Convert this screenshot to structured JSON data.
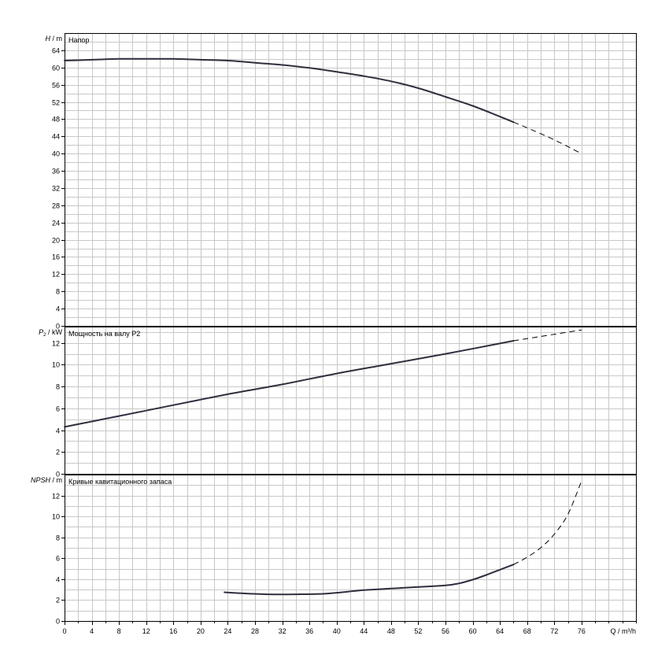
{
  "chart_data": [
    {
      "type": "line",
      "key": "head",
      "title": "Напор",
      "ylabel_italic": "H",
      "ylabel_unit": "/ m",
      "ylim": [
        0,
        68
      ],
      "yticks": [
        0,
        4,
        8,
        12,
        16,
        20,
        24,
        28,
        32,
        36,
        40,
        44,
        48,
        52,
        56,
        60,
        64
      ],
      "grid": true,
      "series": [
        {
          "style": "solid",
          "x": [
            0,
            4,
            8,
            12,
            16,
            20,
            24,
            28,
            32,
            36,
            40,
            44,
            48,
            52,
            56,
            60,
            64,
            66
          ],
          "y": [
            61.6,
            61.8,
            62,
            62,
            62,
            61.8,
            61.6,
            61.1,
            60.6,
            59.9,
            59,
            58,
            56.8,
            55.2,
            53.2,
            51.1,
            48.6,
            47.3
          ]
        },
        {
          "style": "dashed",
          "x": [
            66,
            68,
            72,
            76
          ],
          "y": [
            47.3,
            46,
            43.2,
            40
          ]
        }
      ]
    },
    {
      "type": "line",
      "key": "power",
      "title": "Мощность на валу P2",
      "ylabel_italic": "P",
      "ylabel_sub": "2",
      "ylabel_unit": "/ kW",
      "ylim": [
        0,
        13.5
      ],
      "yticks": [
        0,
        2,
        4,
        6,
        8,
        10,
        12
      ],
      "grid": true,
      "series": [
        {
          "style": "solid",
          "x": [
            0,
            8,
            16,
            24,
            32,
            40,
            48,
            56,
            66
          ],
          "y": [
            4.3,
            5.3,
            6.3,
            7.3,
            8.2,
            9.2,
            10.1,
            11.0,
            12.2
          ]
        },
        {
          "style": "dashed",
          "x": [
            66,
            70,
            76
          ],
          "y": [
            12.2,
            12.6,
            13.2
          ]
        }
      ]
    },
    {
      "type": "line",
      "key": "npsh",
      "title": "Кривые кавитационного запаса",
      "ylabel_italic": "NPSH",
      "ylabel_unit": "/ m",
      "ylim": [
        0,
        14
      ],
      "yticks": [
        0,
        2,
        4,
        6,
        8,
        10,
        12
      ],
      "grid": true,
      "series": [
        {
          "style": "solid",
          "x": [
            23.5,
            26,
            30,
            34,
            38,
            40,
            44,
            48,
            52,
            56,
            58,
            60,
            62,
            64,
            66
          ],
          "y": [
            2.75,
            2.65,
            2.55,
            2.55,
            2.6,
            2.7,
            2.95,
            3.1,
            3.25,
            3.4,
            3.6,
            3.95,
            4.4,
            4.9,
            5.4
          ]
        },
        {
          "style": "dashed",
          "x": [
            66,
            68,
            70,
            72,
            74,
            76
          ],
          "y": [
            5.4,
            6.1,
            7.0,
            8.3,
            10.2,
            13.4
          ]
        }
      ]
    }
  ],
  "x_axis": {
    "label": "Q / m³/h",
    "xlim": [
      0,
      84
    ],
    "ticks": [
      0,
      4,
      8,
      12,
      16,
      20,
      24,
      28,
      32,
      36,
      40,
      44,
      48,
      52,
      56,
      60,
      64,
      68,
      72,
      76
    ],
    "grid_step": 2
  }
}
